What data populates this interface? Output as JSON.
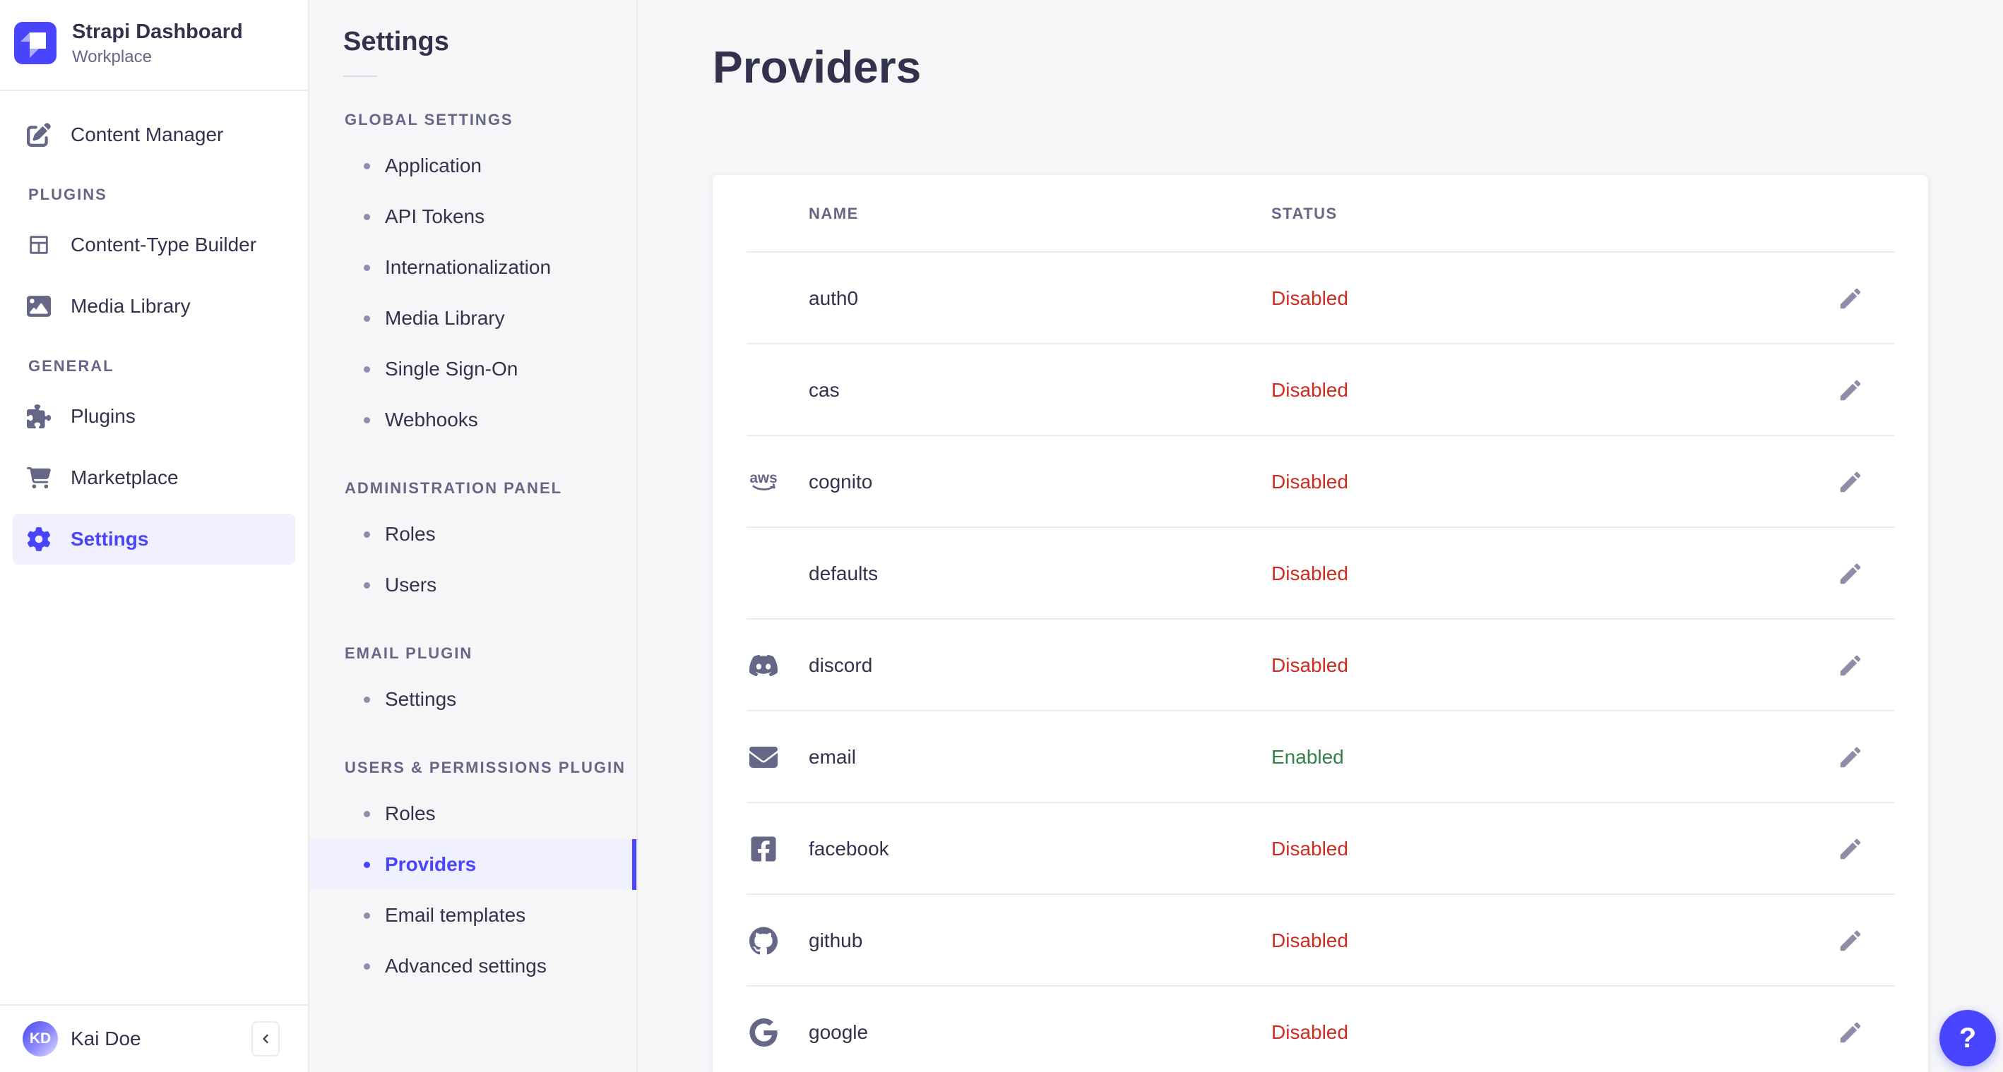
{
  "brand": {
    "title": "Strapi Dashboard",
    "subtitle": "Workplace"
  },
  "sidebar": {
    "items_top": [
      {
        "label": "Content Manager",
        "icon": "pen-square",
        "active": false
      }
    ],
    "sections": [
      {
        "label": "PLUGINS",
        "items": [
          {
            "label": "Content-Type Builder",
            "icon": "layout",
            "active": false
          },
          {
            "label": "Media Library",
            "icon": "picture",
            "active": false
          }
        ]
      },
      {
        "label": "GENERAL",
        "items": [
          {
            "label": "Plugins",
            "icon": "puzzle",
            "active": false
          },
          {
            "label": "Marketplace",
            "icon": "cart",
            "active": false
          },
          {
            "label": "Settings",
            "icon": "gear",
            "active": true
          }
        ]
      }
    ],
    "user": {
      "name": "Kai Doe",
      "initials": "KD"
    }
  },
  "subnav": {
    "title": "Settings",
    "sections": [
      {
        "label": "GLOBAL SETTINGS",
        "items": [
          {
            "label": "Application",
            "active": false
          },
          {
            "label": "API Tokens",
            "active": false
          },
          {
            "label": "Internationalization",
            "active": false
          },
          {
            "label": "Media Library",
            "active": false
          },
          {
            "label": "Single Sign-On",
            "active": false
          },
          {
            "label": "Webhooks",
            "active": false
          }
        ]
      },
      {
        "label": "ADMINISTRATION PANEL",
        "items": [
          {
            "label": "Roles",
            "active": false
          },
          {
            "label": "Users",
            "active": false
          }
        ]
      },
      {
        "label": "EMAIL PLUGIN",
        "items": [
          {
            "label": "Settings",
            "active": false
          }
        ]
      },
      {
        "label": "USERS & PERMISSIONS PLUGIN",
        "items": [
          {
            "label": "Roles",
            "active": false
          },
          {
            "label": "Providers",
            "active": true
          },
          {
            "label": "Email templates",
            "active": false
          },
          {
            "label": "Advanced settings",
            "active": false
          }
        ]
      }
    ]
  },
  "main": {
    "title": "Providers",
    "table": {
      "columns": [
        "NAME",
        "STATUS"
      ],
      "rows": [
        {
          "name": "auth0",
          "status": "Disabled",
          "icon": null
        },
        {
          "name": "cas",
          "status": "Disabled",
          "icon": null
        },
        {
          "name": "cognito",
          "status": "Disabled",
          "icon": "aws"
        },
        {
          "name": "defaults",
          "status": "Disabled",
          "icon": null
        },
        {
          "name": "discord",
          "status": "Disabled",
          "icon": "discord"
        },
        {
          "name": "email",
          "status": "Enabled",
          "icon": "envelope"
        },
        {
          "name": "facebook",
          "status": "Disabled",
          "icon": "facebook"
        },
        {
          "name": "github",
          "status": "Disabled",
          "icon": "github"
        },
        {
          "name": "google",
          "status": "Disabled",
          "icon": "google"
        }
      ]
    }
  },
  "help": {
    "label": "?"
  },
  "colors": {
    "primary": "#4945ff",
    "primary_light": "#f0f0ff",
    "danger": "#d02b20",
    "success": "#328048"
  }
}
